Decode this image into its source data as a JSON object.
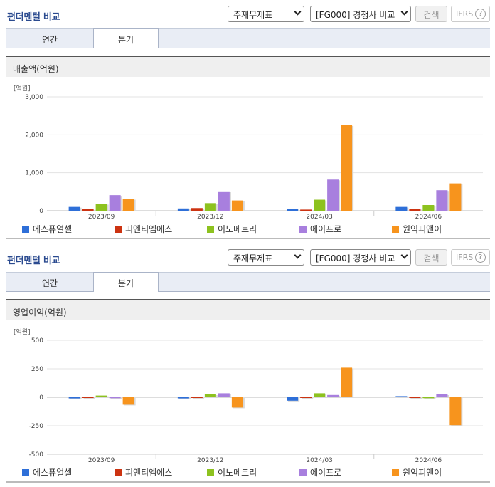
{
  "panels": [
    {
      "title": "펀더멘털 비교",
      "select1": "주재무제표",
      "select2": "[FG000] 경쟁사 비교",
      "search_label": "검색",
      "ifrs_label": "IFRS",
      "help": "?",
      "tab_annual": "연간",
      "tab_quarter": "분기",
      "chart_title": "매출액(억원)",
      "chart_data": {
        "type": "bar",
        "unit": "[억원]",
        "categories": [
          "2023/09",
          "2023/12",
          "2024/03",
          "2024/06"
        ],
        "ylim": [
          0,
          3000
        ],
        "yticks": [
          0,
          1000,
          2000,
          3000
        ],
        "ytick_labels": [
          "0",
          "1,000",
          "2,000",
          "3,000"
        ],
        "series": [
          {
            "name": "에스퓨얼셀",
            "color": "#2e6fd8",
            "values": [
              100,
              60,
              50,
              100
            ]
          },
          {
            "name": "피엔티엠에스",
            "color": "#cc3311",
            "values": [
              40,
              70,
              30,
              50
            ]
          },
          {
            "name": "이노메트리",
            "color": "#8dc21f",
            "values": [
              180,
              200,
              290,
              150
            ]
          },
          {
            "name": "에이프로",
            "color": "#a87fde",
            "values": [
              410,
              510,
              820,
              540
            ]
          },
          {
            "name": "원익피앤이",
            "color": "#f7941d",
            "values": [
              310,
              270,
              2250,
              720
            ]
          }
        ]
      }
    },
    {
      "title": "펀더멘털 비교",
      "select1": "주재무제표",
      "select2": "[FG000] 경쟁사 비교",
      "search_label": "검색",
      "ifrs_label": "IFRS",
      "help": "?",
      "tab_annual": "연간",
      "tab_quarter": "분기",
      "chart_title": "영업이익(억원)",
      "chart_data": {
        "type": "bar",
        "unit": "[억원]",
        "categories": [
          "2023/09",
          "2023/12",
          "2024/03",
          "2024/06"
        ],
        "ylim": [
          -500,
          500
        ],
        "yticks": [
          -500,
          -250,
          0,
          250,
          500
        ],
        "ytick_labels": [
          "-500",
          "-250",
          "0",
          "250",
          "500"
        ],
        "series": [
          {
            "name": "에스퓨얼셀",
            "color": "#2e6fd8",
            "values": [
              -10,
              -10,
              -30,
              10
            ]
          },
          {
            "name": "피엔티엠에스",
            "color": "#cc3311",
            "values": [
              -3,
              -3,
              -5,
              -5
            ]
          },
          {
            "name": "이노메트리",
            "color": "#8dc21f",
            "values": [
              15,
              25,
              35,
              -8
            ]
          },
          {
            "name": "에이프로",
            "color": "#a87fde",
            "values": [
              -8,
              35,
              20,
              25
            ]
          },
          {
            "name": "원익피앤이",
            "color": "#f7941d",
            "values": [
              -65,
              -90,
              260,
              -245
            ]
          }
        ]
      }
    }
  ]
}
